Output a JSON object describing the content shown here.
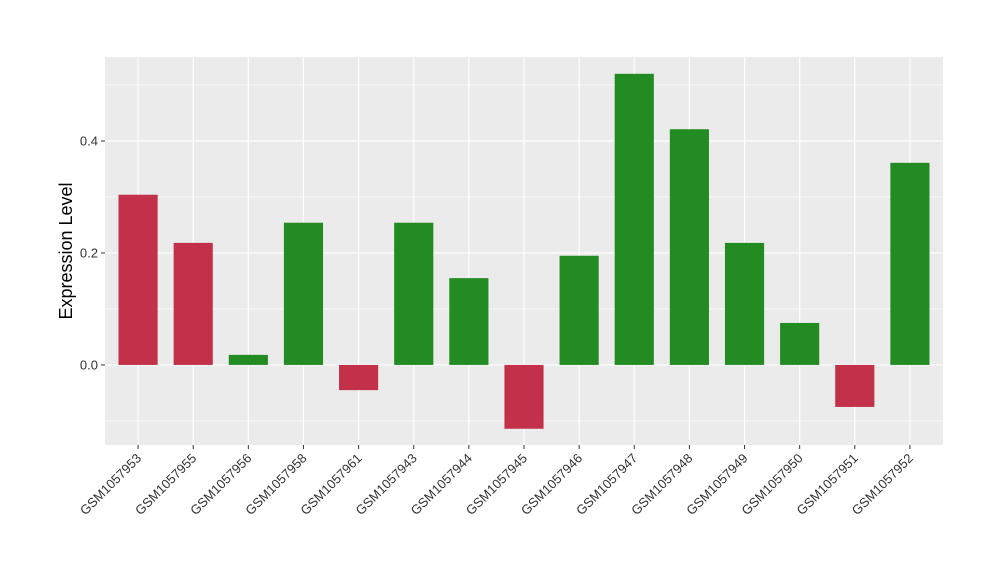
{
  "chart_data": {
    "type": "bar",
    "title": "",
    "xlabel": "",
    "ylabel": "Expression Level",
    "categories": [
      "GSM1057953",
      "GSM1057955",
      "GSM1057956",
      "GSM1057958",
      "GSM1057961",
      "GSM1057943",
      "GSM1057944",
      "GSM1057945",
      "GSM1057946",
      "GSM1057947",
      "GSM1057948",
      "GSM1057949",
      "GSM1057950",
      "GSM1057951",
      "GSM1057952"
    ],
    "values": [
      0.304,
      0.218,
      0.018,
      0.254,
      -0.045,
      0.254,
      0.155,
      -0.114,
      0.195,
      0.52,
      0.421,
      0.218,
      0.075,
      -0.075,
      0.361
    ],
    "bar_colors": [
      "#C3304A",
      "#C3304A",
      "#228B22",
      "#228B22",
      "#C3304A",
      "#228B22",
      "#228B22",
      "#C3304A",
      "#228B22",
      "#228B22",
      "#228B22",
      "#228B22",
      "#228B22",
      "#C3304A",
      "#228B22"
    ],
    "ylim": [
      -0.143,
      0.55
    ],
    "yticks": [
      0.0,
      0.2,
      0.4
    ],
    "ytick_labels": [
      "0.0",
      "0.2",
      "0.4"
    ],
    "grid": true,
    "panel_background": "#EBEBEB",
    "legend": "none"
  }
}
